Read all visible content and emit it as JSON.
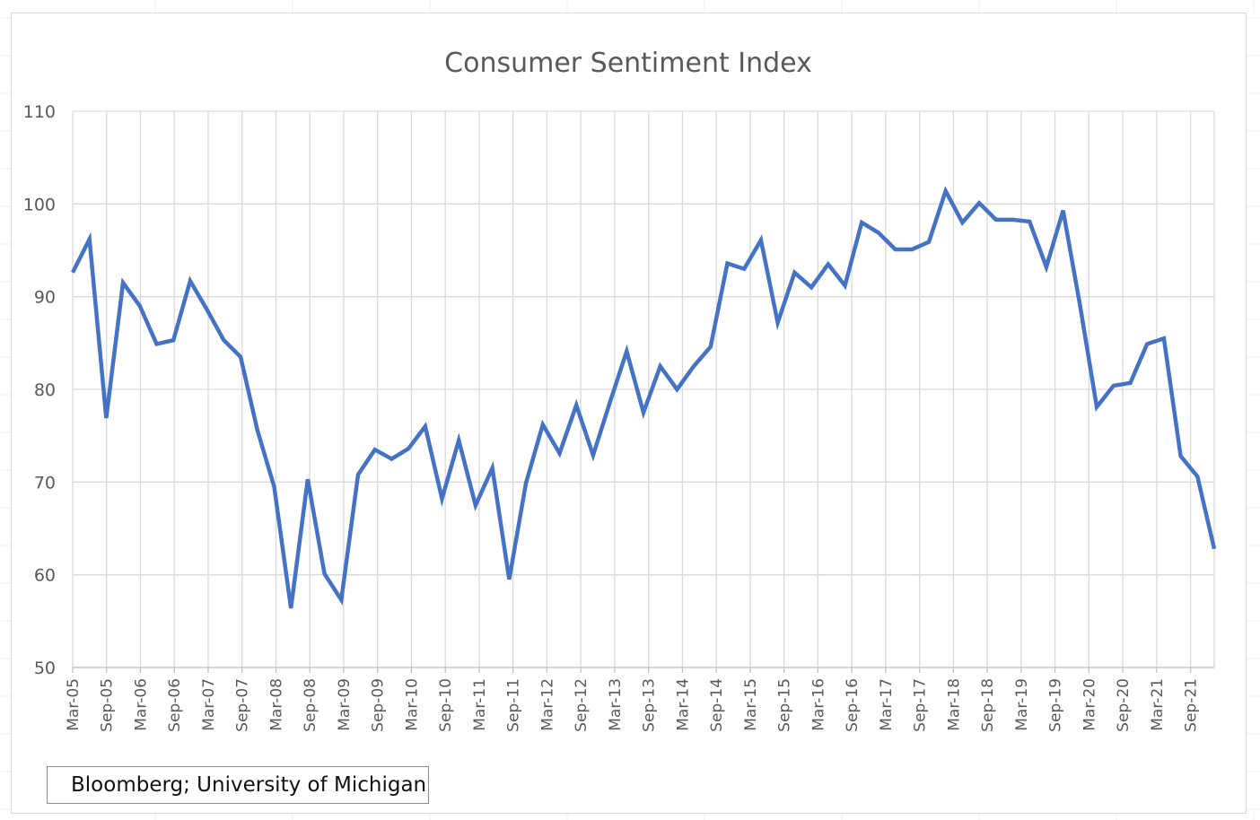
{
  "colors": {
    "line": "#4472C4",
    "grid": "#d9d9d9",
    "text": "#595959",
    "axis": "#bfbfbf"
  },
  "source_note": "Bloomberg; University of Michigan",
  "chart_data": {
    "type": "line",
    "title": "Consumer Sentiment Index",
    "xlabel": "",
    "ylabel": "",
    "ylim": [
      50,
      110
    ],
    "yticks": [
      50,
      60,
      70,
      80,
      90,
      100,
      110
    ],
    "grid": true,
    "legend": "none",
    "x_tick_labels": [
      "Mar-05",
      "Sep-05",
      "Mar-06",
      "Sep-06",
      "Mar-07",
      "Sep-07",
      "Mar-08",
      "Sep-08",
      "Mar-09",
      "Sep-09",
      "Mar-10",
      "Sep-10",
      "Mar-11",
      "Sep-11",
      "Mar-12",
      "Sep-12",
      "Mar-13",
      "Sep-13",
      "Mar-14",
      "Sep-14",
      "Mar-15",
      "Sep-15",
      "Mar-16",
      "Sep-16",
      "Mar-17",
      "Sep-17",
      "Mar-18",
      "Sep-18",
      "Mar-19",
      "Sep-19",
      "Mar-20",
      "Sep-20",
      "Mar-21",
      "Sep-21"
    ],
    "series": [
      {
        "name": "",
        "values": [
          92.6,
          96.2,
          76.9,
          91.5,
          89.0,
          84.9,
          85.3,
          91.7,
          88.6,
          85.3,
          83.5,
          75.6,
          69.5,
          56.4,
          70.3,
          60.1,
          57.3,
          70.8,
          73.5,
          72.5,
          73.6,
          76.0,
          68.2,
          74.5,
          67.5,
          71.5,
          59.5,
          69.9,
          76.2,
          73.1,
          78.3,
          72.9,
          78.6,
          84.1,
          77.5,
          82.5,
          80.0,
          82.5,
          84.6,
          93.6,
          93.0,
          96.1,
          87.2,
          92.6,
          91.0,
          93.5,
          91.2,
          98.0,
          96.9,
          95.1,
          95.1,
          95.9,
          101.4,
          98.0,
          100.1,
          98.3,
          98.3,
          98.1,
          93.2,
          99.3,
          89.1,
          78.1,
          80.4,
          80.7,
          84.9,
          85.5,
          72.8,
          70.6,
          62.8
        ]
      }
    ]
  }
}
